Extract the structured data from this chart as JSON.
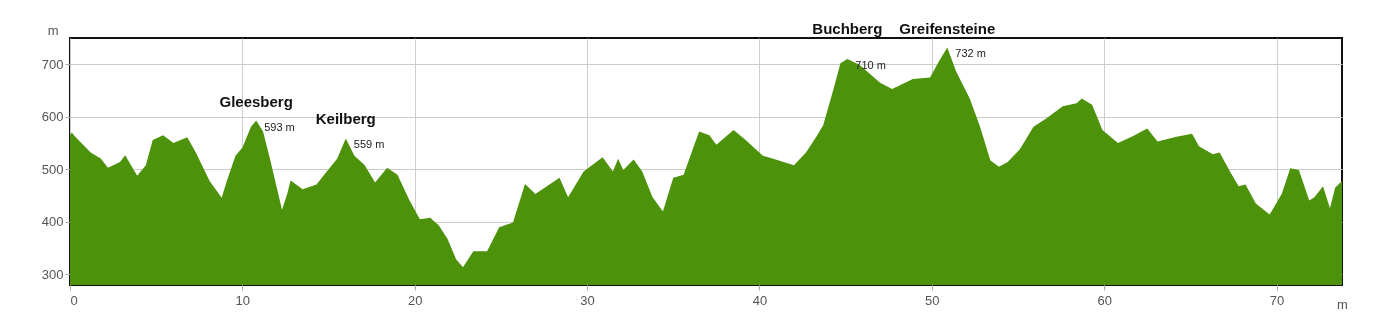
{
  "chart_data": {
    "type": "area",
    "xlabel": "m",
    "ylabel": "m",
    "x": [
      0,
      0.1,
      0.4,
      1.2,
      1.8,
      2.2,
      2.9,
      3.2,
      3.9,
      4.4,
      4.8,
      5.4,
      6.0,
      6.8,
      7.3,
      8.1,
      8.8,
      9.1,
      9.6,
      10.0,
      10.5,
      10.8,
      11.2,
      11.6,
      12.3,
      12.6,
      12.8,
      13.5,
      14.3,
      14.9,
      15.5,
      16.0,
      16.5,
      17.1,
      17.7,
      18.4,
      19.0,
      19.7,
      20.3,
      20.9,
      21.4,
      21.9,
      22.4,
      22.8,
      23.4,
      24.2,
      24.9,
      25.7,
      26.4,
      27.0,
      28.4,
      28.9,
      29.8,
      30.9,
      31.5,
      31.8,
      32.1,
      32.7,
      33.2,
      33.8,
      34.4,
      35.0,
      35.6,
      36.5,
      37.1,
      37.5,
      38.5,
      39.2,
      40.2,
      40.8,
      42.0,
      42.7,
      43.3,
      43.7,
      44.3,
      44.7,
      45.1,
      45.8,
      47.0,
      47.7,
      48.9,
      49.9,
      50.4,
      50.9,
      51.4,
      52.2,
      52.8,
      53.4,
      53.9,
      54.4,
      55.1,
      55.9,
      56.6,
      57.6,
      58.4,
      58.7,
      59.3,
      59.9,
      60.8,
      61.6,
      62.5,
      63.1,
      64.2,
      65.1,
      65.5,
      66.3,
      66.7,
      67.3,
      67.8,
      68.2,
      68.8,
      69.6,
      70.3,
      70.8,
      71.3,
      71.9,
      72.2,
      72.7,
      73.1,
      73.4,
      73.8
    ],
    "series": [
      {
        "color": "#4c920a",
        "values": [
          565,
          570,
          559,
          532,
          520,
          503,
          514,
          527,
          488,
          508,
          556,
          565,
          550,
          561,
          532,
          478,
          446,
          478,
          526,
          541,
          581,
          593,
          572,
          520,
          423,
          453,
          479,
          462,
          471,
          496,
          520,
          559,
          526,
          508,
          475,
          503,
          490,
          441,
          405,
          408,
          393,
          368,
          329,
          314,
          344,
          344,
          390,
          399,
          472,
          453,
          484,
          447,
          496,
          523,
          496,
          520,
          499,
          519,
          496,
          447,
          420,
          484,
          490,
          572,
          565,
          547,
          575,
          556,
          526,
          520,
          508,
          532,
          562,
          584,
          653,
          702,
          710,
          699,
          665,
          653,
          672,
          675,
          705,
          732,
          687,
          635,
          581,
          517,
          505,
          514,
          538,
          581,
          596,
          620,
          626,
          635,
          623,
          575,
          550,
          562,
          578,
          553,
          562,
          568,
          544,
          529,
          532,
          496,
          468,
          471,
          435,
          414,
          453,
          502,
          499,
          441,
          447,
          468,
          426,
          465,
          478
        ]
      }
    ],
    "xlim": [
      0,
      73.8
    ],
    "ylim": [
      280,
      750
    ],
    "xticks": [
      0,
      10,
      20,
      30,
      40,
      50,
      60,
      70
    ],
    "yticks": [
      300,
      400,
      500,
      600,
      700
    ],
    "grid": true,
    "annotations": [
      {
        "text": "Gleesberg",
        "x": 10.8,
        "y": 593
      },
      {
        "text": "593 m",
        "x": 10.8,
        "y": 593
      },
      {
        "text": "Keilberg",
        "x": 16.0,
        "y": 559
      },
      {
        "text": "559 m",
        "x": 16.0,
        "y": 559
      },
      {
        "text": "Buchberg",
        "x": 45.1,
        "y": 710
      },
      {
        "text": "710 m",
        "x": 45.1,
        "y": 710
      },
      {
        "text": "Greifensteine",
        "x": 50.9,
        "y": 732
      },
      {
        "text": "732 m",
        "x": 50.9,
        "y": 732
      }
    ]
  }
}
